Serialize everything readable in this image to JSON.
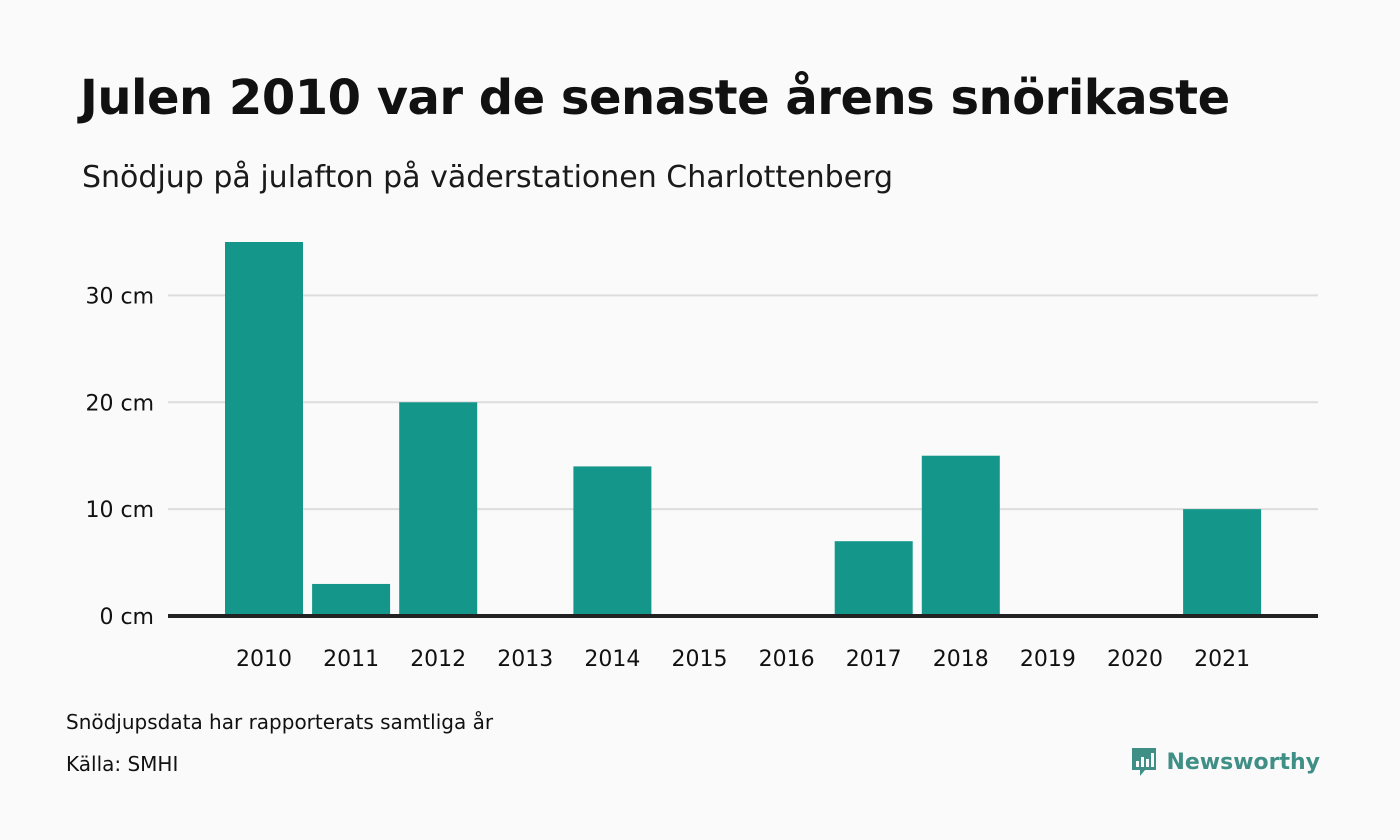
{
  "header": {
    "title": "Julen 2010 var de senaste årens snörikaste",
    "subtitle": "Snödjup på julafton på väderstationen Charlottenberg"
  },
  "footer": {
    "note": "Snödjupsdata har rapporterats samtliga år",
    "source": "Källa: SMHI",
    "brand": "Newsworthy",
    "brand_icon": "bar-chart-speech-bubble-icon"
  },
  "colors": {
    "bar": "#14968a",
    "grid": "#dddddd",
    "baseline": "#222222",
    "brand": "#3f8f86"
  },
  "chart_data": {
    "type": "bar",
    "categories": [
      "2010",
      "2011",
      "2012",
      "2013",
      "2014",
      "2015",
      "2016",
      "2017",
      "2018",
      "2019",
      "2020",
      "2021"
    ],
    "values": [
      35,
      3,
      20,
      0,
      14,
      0,
      0,
      7,
      15,
      0,
      0,
      10
    ],
    "unit": "cm",
    "yticks": [
      0,
      10,
      20,
      30
    ],
    "ytick_labels": [
      "0 cm",
      "10 cm",
      "20 cm",
      "30 cm"
    ],
    "ylim": [
      0,
      35
    ],
    "grid": true,
    "legend": "none"
  }
}
